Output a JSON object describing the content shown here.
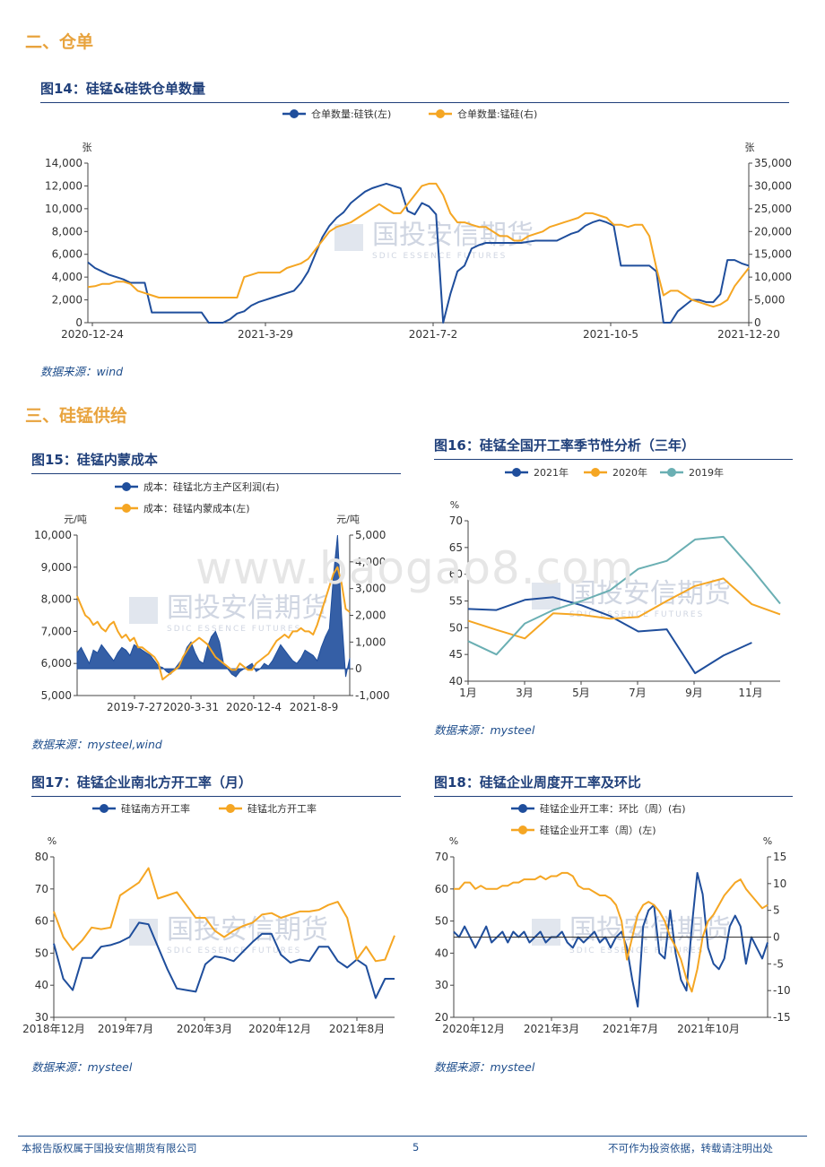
{
  "section2": "二、仓单",
  "section3": "三、硅锰供给",
  "watermark": "国投安信期货",
  "watermark_en": "SDIC ESSENCE FUTURES",
  "site_watermark": "www.baogao8.com",
  "footer": {
    "left": "本报告版权属于国投安信期货有限公司",
    "page": "5",
    "right": "不可作为投资依据，转载请注明出处"
  },
  "colors": {
    "navy": "#1F4E9C",
    "orange": "#F5A623",
    "teal": "#6AAFB3"
  },
  "chart_data": [
    {
      "id": "fig14",
      "type": "line",
      "title": "图14：硅锰&硅铁仓单数量",
      "source": "数据来源：wind",
      "yunit_left": "张",
      "yunit_right": "张",
      "ylim_left": [
        0,
        14000
      ],
      "ylim_right": [
        0,
        35000
      ],
      "yticks_left": [
        "14,000",
        "12,000",
        "10,000",
        "8,000",
        "6,000",
        "4,000",
        "2,000",
        "0"
      ],
      "yticks_right": [
        "35,000",
        "30,000",
        "25,000",
        "20,000",
        "15,000",
        "10,000",
        "5,000",
        "0"
      ],
      "xticks": [
        "2020-12-24",
        "2021-3-29",
        "2021-7-2",
        "2021-10-5",
        "2021-12-20"
      ],
      "series": [
        {
          "name": "仓单数量:硅铁(左)",
          "axis": "left",
          "color": "#1F4E9C",
          "values": [
            5300,
            4800,
            4500,
            4200,
            4000,
            3800,
            3500,
            3500,
            3500,
            900,
            900,
            900,
            900,
            900,
            900,
            900,
            900,
            0,
            0,
            0,
            300,
            800,
            1000,
            1500,
            1800,
            2000,
            2200,
            2400,
            2600,
            2800,
            3500,
            4500,
            6000,
            7500,
            8500,
            9200,
            9700,
            10500,
            11000,
            11500,
            11800,
            12000,
            12200,
            12000,
            11800,
            9800,
            9500,
            10500,
            10200,
            9500,
            0,
            2500,
            4500,
            5000,
            6500,
            6800,
            7000,
            7000,
            7000,
            7000,
            7000,
            7000,
            7100,
            7200,
            7200,
            7200,
            7200,
            7500,
            7800,
            8000,
            8500,
            8800,
            9000,
            8800,
            8500,
            5000,
            5000,
            5000,
            5000,
            5000,
            4500,
            0,
            0,
            1000,
            1500,
            2000,
            2000,
            1800,
            1800,
            2500,
            5500,
            5500,
            5200,
            5000
          ]
        },
        {
          "name": "仓单数量:锰硅(右)",
          "axis": "right",
          "color": "#F5A623",
          "values": [
            7800,
            8000,
            8500,
            8500,
            9000,
            9000,
            8500,
            7000,
            6500,
            6000,
            5500,
            5500,
            5500,
            5500,
            5500,
            5500,
            5500,
            5500,
            5500,
            5500,
            5500,
            5500,
            10000,
            10500,
            11000,
            11000,
            11000,
            11000,
            12000,
            12500,
            13000,
            14000,
            16000,
            18000,
            20000,
            21000,
            21500,
            22000,
            23000,
            24000,
            25000,
            26000,
            25000,
            24000,
            24000,
            26000,
            28000,
            30000,
            30500,
            30500,
            28000,
            24000,
            22000,
            22000,
            21500,
            21000,
            21000,
            20000,
            19000,
            19000,
            18000,
            18000,
            19000,
            19500,
            20000,
            21000,
            21500,
            22000,
            22500,
            23000,
            24000,
            24000,
            23500,
            23000,
            21500,
            21500,
            21000,
            21500,
            21500,
            19000,
            12000,
            6000,
            7000,
            7000,
            6000,
            5000,
            4500,
            4000,
            3500,
            4000,
            5000,
            8000,
            10000,
            12000
          ]
        }
      ]
    },
    {
      "id": "fig15",
      "type": "combo",
      "title": "图15：硅锰内蒙成本",
      "source": "数据来源：mysteel,wind",
      "yunit_left": "元/吨",
      "yunit_right": "元/吨",
      "ylim_left": [
        5000,
        10000
      ],
      "ylim_right": [
        -1000,
        5000
      ],
      "yticks_left": [
        "10,000",
        "9,000",
        "8,000",
        "7,000",
        "6,000",
        "5,000"
      ],
      "yticks_right": [
        "5,000",
        "4,000",
        "3,000",
        "2,000",
        "1,000",
        "0",
        "-1,000"
      ],
      "xticks": [
        "2019-7-27",
        "2020-3-31",
        "2020-12-4",
        "2021-8-9"
      ],
      "series": [
        {
          "name": "成本：硅锰北方主产区利润(右)",
          "axis": "right",
          "kind": "area",
          "color": "#1F4E9C",
          "values": [
            600,
            800,
            500,
            200,
            700,
            600,
            900,
            700,
            500,
            300,
            600,
            800,
            700,
            500,
            900,
            800,
            700,
            600,
            500,
            300,
            100,
            50,
            -100,
            -200,
            0,
            200,
            400,
            800,
            1000,
            600,
            300,
            200,
            800,
            1200,
            1400,
            1000,
            200,
            0,
            -200,
            -300,
            -100,
            0,
            100,
            200,
            -100,
            0,
            200,
            100,
            300,
            600,
            900,
            700,
            500,
            300,
            200,
            400,
            700,
            600,
            500,
            300,
            800,
            1200,
            1500,
            3500,
            5000,
            2000,
            -300,
            400
          ]
        },
        {
          "name": "成本：硅锰内蒙成本(左)",
          "axis": "left",
          "kind": "line",
          "color": "#F5A623",
          "values": [
            8100,
            7800,
            7500,
            7400,
            7200,
            7300,
            7100,
            7000,
            7200,
            7300,
            7000,
            6800,
            6900,
            6700,
            6800,
            6500,
            6500,
            6400,
            6300,
            6200,
            6000,
            5500,
            5600,
            5700,
            5800,
            5900,
            6200,
            6400,
            6600,
            6700,
            6800,
            6700,
            6600,
            6400,
            6200,
            6100,
            6000,
            5900,
            5800,
            5800,
            6000,
            5900,
            5800,
            5800,
            6000,
            6100,
            6200,
            6300,
            6500,
            6700,
            6800,
            6900,
            6800,
            7000,
            7000,
            7100,
            7000,
            7000,
            6900,
            7200,
            7600,
            8000,
            8400,
            8800,
            9000,
            8500,
            7700,
            7600
          ]
        }
      ]
    },
    {
      "id": "fig16",
      "type": "line",
      "title": "图16：硅锰全国开工率季节性分析（三年）",
      "source": "数据来源：mysteel",
      "yunit_left": "%",
      "ylim_left": [
        40,
        70
      ],
      "yticks_left": [
        "70",
        "65",
        "60",
        "55",
        "50",
        "45",
        "40"
      ],
      "xticks": [
        "1月",
        "3月",
        "5月",
        "7月",
        "9月",
        "11月"
      ],
      "series": [
        {
          "name": "2021年",
          "color": "#1F4E9C",
          "values": [
            53.5,
            53.3,
            55.2,
            55.7,
            54.2,
            52.2,
            49.3,
            49.7,
            41.5,
            44.8,
            47.2
          ]
        },
        {
          "name": "2020年",
          "color": "#F5A623",
          "values": [
            51.3,
            49.6,
            48,
            52.7,
            52.4,
            51.7,
            52,
            55,
            57.8,
            59.2,
            54.4,
            52.5
          ]
        },
        {
          "name": "2019年",
          "color": "#6AAFB3",
          "values": [
            47.5,
            45,
            50.8,
            53.3,
            55,
            57,
            61,
            62.5,
            66.5,
            67,
            61,
            54.5
          ]
        }
      ]
    },
    {
      "id": "fig17",
      "type": "line",
      "title": "图17：硅锰企业南北方开工率（月）",
      "source": "数据来源：mysteel",
      "yunit_left": "%",
      "ylim_left": [
        30,
        80
      ],
      "yticks_left": [
        "80",
        "70",
        "60",
        "50",
        "40",
        "30"
      ],
      "xticks": [
        "2018年12月",
        "2019年7月",
        "2020年3月",
        "2020年12月",
        "2021年8月"
      ],
      "series": [
        {
          "name": "硅锰南方开工率",
          "color": "#1F4E9C",
          "values": [
            53,
            42,
            38.5,
            48.5,
            48.5,
            52,
            52.5,
            53.5,
            55,
            59.5,
            59,
            52,
            45,
            39,
            38.5,
            38,
            46.5,
            49,
            48.5,
            47.5,
            50.5,
            53.5,
            56,
            56,
            49.5,
            47,
            48,
            47.5,
            52,
            52,
            47.5,
            45.5,
            48,
            46,
            36,
            42,
            42
          ]
        },
        {
          "name": "硅锰北方开工率",
          "color": "#F5A623",
          "values": [
            63,
            55,
            51,
            54,
            58,
            57.5,
            58,
            68,
            70,
            72,
            76.5,
            67,
            68,
            69,
            65,
            61,
            61,
            57,
            55,
            57,
            58.5,
            59.5,
            62,
            62.5,
            61,
            62,
            63,
            63,
            63.5,
            65,
            66,
            61,
            48,
            52,
            47.5,
            48,
            55.5
          ]
        }
      ]
    },
    {
      "id": "fig18",
      "type": "line",
      "title": "图18：硅锰企业周度开工率及环比",
      "source": "数据来源：mysteel",
      "yunit_left": "%",
      "yunit_right": "%",
      "ylim_left": [
        20,
        70
      ],
      "ylim_right": [
        -15,
        15
      ],
      "yticks_left": [
        "70",
        "60",
        "50",
        "40",
        "30",
        "20"
      ],
      "yticks_right": [
        "15",
        "10",
        "5",
        "0",
        "-5",
        "-10",
        "-15"
      ],
      "xticks": [
        "2020年12月",
        "2021年3月",
        "2021年7月",
        "2021年10月"
      ],
      "series": [
        {
          "name": "硅锰企业开工率：环比（周）(右)",
          "axis": "right",
          "color": "#1F4E9C",
          "values": [
            1,
            0,
            2,
            0,
            -2,
            0,
            2,
            -1,
            0,
            1,
            -1,
            1,
            0,
            1,
            -1,
            0,
            1,
            -1,
            0,
            0,
            1,
            -1,
            -2,
            0,
            -1,
            0,
            1,
            -1,
            0,
            -2,
            0,
            1,
            -2,
            -8,
            -13,
            2,
            5,
            6,
            -3,
            -4,
            5,
            -3,
            -8,
            -10,
            2,
            12,
            8,
            -2,
            -5,
            -6,
            -4,
            2,
            4,
            2,
            -5,
            0,
            -2,
            -4,
            -1
          ]
        },
        {
          "name": "硅锰企业开工率（周）(左)",
          "axis": "left",
          "color": "#F5A623",
          "values": [
            60,
            60,
            62,
            62,
            60,
            61,
            60,
            60,
            60,
            61,
            61,
            62,
            62,
            63,
            63,
            63,
            64,
            63,
            64,
            64,
            65,
            65,
            64,
            61,
            60,
            60,
            59,
            58,
            58,
            57,
            55,
            50,
            38,
            45,
            52,
            55,
            56,
            55,
            53,
            50,
            45,
            42,
            38,
            32,
            28,
            35,
            45,
            50,
            52,
            55,
            58,
            60,
            62,
            63,
            60,
            58,
            56,
            54,
            55
          ]
        }
      ]
    }
  ]
}
